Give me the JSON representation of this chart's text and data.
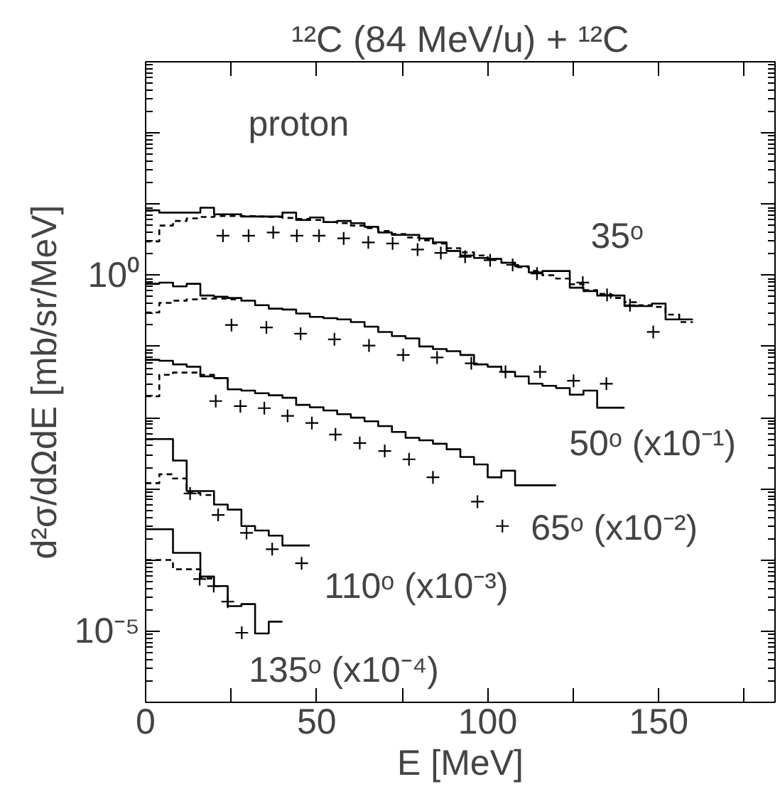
{
  "chart_data": {
    "type": "step",
    "title": "¹²C (84 MeV/u) + ¹²C",
    "xlabel": "E [MeV]",
    "ylabel": "d²σ/dΩdE [mb/sr/MeV]",
    "log": "y",
    "grid": false,
    "xlim": [
      0,
      184
    ],
    "ylim": [
      1e-06,
      1000
    ],
    "xticks": [
      0,
      {
        "value": 25,
        "label": null
      },
      50,
      {
        "value": 75,
        "label": null
      },
      100,
      {
        "value": 125,
        "label": null
      },
      150,
      {
        "value": 175,
        "label": null
      }
    ],
    "yticks": [
      {
        "value": 1e-06,
        "label": null
      },
      {
        "value": 1e-05,
        "label": "10⁻⁵"
      },
      {
        "value": 0.0001,
        "label": null
      },
      {
        "value": 0.001,
        "label": null
      },
      {
        "value": 0.01,
        "label": null
      },
      {
        "value": 0.1,
        "label": null
      },
      {
        "value": 1,
        "label": "10⁰"
      },
      {
        "value": 10,
        "label": null
      },
      {
        "value": 100,
        "label": null
      },
      {
        "value": 1000,
        "label": null
      }
    ],
    "series": [
      {
        "line_style": "solid",
        "color": "#000000",
        "x": [
          0,
          4,
          8,
          12,
          16,
          20,
          24,
          28,
          32,
          36,
          40,
          44,
          48,
          52,
          56,
          60,
          64,
          68,
          72,
          76,
          80,
          84,
          88,
          92,
          96,
          100,
          104,
          108,
          112,
          116,
          120,
          124,
          128,
          132,
          136,
          140,
          144,
          148,
          152,
          156,
          160
        ],
        "values": [
          8.2,
          7.6,
          7.6,
          7.6,
          8.9,
          7.2,
          7.2,
          6.7,
          6.7,
          6.7,
          7.6,
          6.0,
          6.5,
          5.6,
          5.8,
          5.4,
          4.8,
          4.0,
          3.7,
          3.7,
          3.3,
          2.9,
          2.2,
          1.9,
          1.75,
          1.7,
          1.5,
          1.34,
          1.1,
          1.15,
          1.15,
          0.67,
          0.6,
          0.52,
          0.52,
          0.37,
          0.37,
          0.4,
          0.24,
          0.24,
          0.24
        ]
      },
      {
        "line_style": "dashed",
        "color": "#000000",
        "x": [
          0,
          4,
          8,
          12,
          16,
          20,
          24,
          28,
          32,
          36,
          40,
          44,
          48,
          52,
          56,
          60,
          64,
          68,
          72,
          76,
          80,
          84,
          88,
          92,
          96,
          100,
          104,
          108,
          112,
          116,
          120,
          124,
          128,
          132,
          136,
          140,
          144,
          148,
          152,
          156,
          160
        ],
        "values": [
          3.0,
          5.0,
          5.8,
          6.3,
          6.6,
          6.8,
          6.8,
          6.8,
          6.7,
          6.6,
          6.4,
          6.2,
          6.0,
          5.6,
          5.4,
          5.0,
          4.6,
          4.2,
          3.8,
          3.4,
          3.1,
          2.8,
          2.4,
          2.1,
          1.9,
          1.7,
          1.5,
          1.3,
          1.15,
          1.0,
          0.9,
          0.75,
          0.62,
          0.55,
          0.48,
          0.42,
          0.38,
          0.36,
          0.28,
          0.22,
          0.22
        ]
      },
      {
        "type": "scatter",
        "marker": "cross",
        "color": "#000000",
        "x": [
          22.6,
          30.1,
          37.3,
          44.2,
          50.7,
          57.9,
          65.1,
          72.2,
          79.5,
          86.3,
          93.4,
          100.7,
          107.3,
          114.4,
          127.8,
          134.9,
          141.6,
          148.4
        ],
        "values": [
          3.6,
          3.6,
          4.0,
          3.6,
          3.6,
          3.3,
          2.9,
          2.8,
          2.3,
          2.06,
          1.82,
          1.63,
          1.4,
          1.06,
          0.79,
          0.53,
          0.38,
          0.16
        ]
      },
      {
        "line_style": "solid",
        "color": "#000000",
        "x": [
          0,
          4,
          8,
          12,
          16,
          20,
          24,
          28,
          32,
          36,
          40,
          44,
          48,
          52,
          56,
          60,
          64,
          68,
          72,
          76,
          80,
          84,
          88,
          92,
          96,
          100,
          104,
          108,
          112,
          116,
          120,
          124,
          128,
          132,
          136,
          140
        ],
        "values": [
          0.76,
          0.79,
          0.7,
          0.76,
          0.52,
          0.5,
          0.48,
          0.44,
          0.38,
          0.34,
          0.33,
          0.29,
          0.26,
          0.25,
          0.24,
          0.22,
          0.19,
          0.16,
          0.14,
          0.13,
          0.1,
          0.092,
          0.086,
          0.076,
          0.056,
          0.052,
          0.044,
          0.038,
          0.03,
          0.028,
          0.026,
          0.021,
          0.024,
          0.0138,
          0.0138,
          0.0138
        ]
      },
      {
        "line_style": "dashed",
        "color": "#000000",
        "x": [
          0,
          4,
          8,
          12,
          16,
          20,
          24,
          28
        ],
        "values": [
          0.3,
          0.41,
          0.44,
          0.46,
          0.47,
          0.47,
          0.46,
          0.46
        ]
      },
      {
        "type": "scatter",
        "marker": "cross",
        "color": "#000000",
        "x": [
          25.1,
          35.3,
          45.3,
          55.2,
          65.3,
          75.3,
          85.2,
          95.2,
          105.2,
          115.3,
          125.1,
          134.7
        ],
        "values": [
          0.2,
          0.185,
          0.151,
          0.126,
          0.103,
          0.076,
          0.07,
          0.058,
          0.044,
          0.044,
          0.033,
          0.03
        ]
      },
      {
        "line_style": "solid",
        "color": "#000000",
        "x": [
          0,
          4,
          8,
          12,
          16,
          20,
          24,
          28,
          32,
          36,
          40,
          44,
          48,
          52,
          56,
          60,
          64,
          68,
          72,
          76,
          80,
          84,
          88,
          92,
          96,
          100,
          104,
          108,
          112,
          116,
          120
        ],
        "values": [
          0.065,
          0.063,
          0.056,
          0.052,
          0.038,
          0.036,
          0.025,
          0.024,
          0.022,
          0.0206,
          0.019,
          0.0151,
          0.014,
          0.0126,
          0.0112,
          0.01,
          0.0089,
          0.0076,
          0.0063,
          0.0052,
          0.0048,
          0.0043,
          0.0036,
          0.0028,
          0.0022,
          0.00145,
          0.0018,
          0.00112,
          0.00112,
          0.00112,
          0.00112
        ]
      },
      {
        "line_style": "dashed",
        "color": "#000000",
        "x": [
          0,
          4,
          8,
          12,
          16,
          20,
          24
        ],
        "values": [
          0.02,
          0.04,
          0.043,
          0.043,
          0.04,
          0.036,
          0.036
        ]
      },
      {
        "type": "scatter",
        "marker": "cross",
        "color": "#000000",
        "x": [
          20.5,
          27.7,
          34.7,
          41.5,
          48.6,
          55.5,
          62.6,
          69.9,
          77.0,
          84.0,
          97.0,
          104.3
        ],
        "values": [
          0.0171,
          0.0145,
          0.0136,
          0.0106,
          0.0084,
          0.0058,
          0.0044,
          0.0034,
          0.0026,
          0.00145,
          0.00066,
          0.0003
        ]
      },
      {
        "line_style": "solid",
        "color": "#000000",
        "x": [
          0,
          4,
          8,
          12,
          16,
          20,
          24,
          28,
          32,
          36,
          40,
          44,
          48
        ],
        "values": [
          0.005,
          0.005,
          0.0025,
          0.00093,
          0.00093,
          0.0006,
          0.00051,
          0.0003,
          0.00026,
          0.00022,
          0.00016,
          0.00016,
          0.00016
        ]
      },
      {
        "line_style": "dashed",
        "color": "#000000",
        "x": [
          0,
          4,
          8,
          12,
          16,
          20
        ],
        "values": [
          0.0012,
          0.0016,
          0.0014,
          0.00087,
          0.00082,
          0.00082
        ]
      },
      {
        "type": "scatter",
        "marker": "cross",
        "color": "#000000",
        "x": [
          13.0,
          21.2,
          29.5,
          37.0,
          45.6
        ],
        "values": [
          0.00086,
          0.00043,
          0.00024,
          0.000142,
          9e-05
        ]
      },
      {
        "line_style": "solid",
        "color": "#000000",
        "x": [
          0,
          4,
          8,
          12,
          16,
          20,
          24,
          28,
          32,
          36,
          40
        ],
        "values": [
          0.00027,
          0.00027,
          0.000126,
          0.000126,
          5.85e-05,
          4.3e-05,
          2.25e-05,
          2.4e-05,
          9.3e-06,
          1.36e-05,
          1.36e-05
        ]
      },
      {
        "line_style": "dashed",
        "color": "#000000",
        "x": [
          0,
          4,
          8,
          12,
          16,
          20
        ],
        "values": [
          0.0001,
          0.0001,
          7.4e-05,
          7.4e-05,
          5.5e-05,
          5.5e-05
        ]
      },
      {
        "type": "scatter",
        "marker": "cross",
        "color": "#000000",
        "x": [
          15.8,
          19.9,
          24.0,
          28.1
        ],
        "values": [
          5.4e-05,
          4.3e-05,
          2.6e-05,
          9.5e-06
        ]
      }
    ],
    "annotations": [
      "proton",
      "35ᵒ",
      "50ᵒ (x10⁻¹)",
      "65ᵒ (x10⁻²)",
      "110ᵒ (x10⁻³)",
      "135ᵒ (x10⁻⁴)"
    ]
  }
}
